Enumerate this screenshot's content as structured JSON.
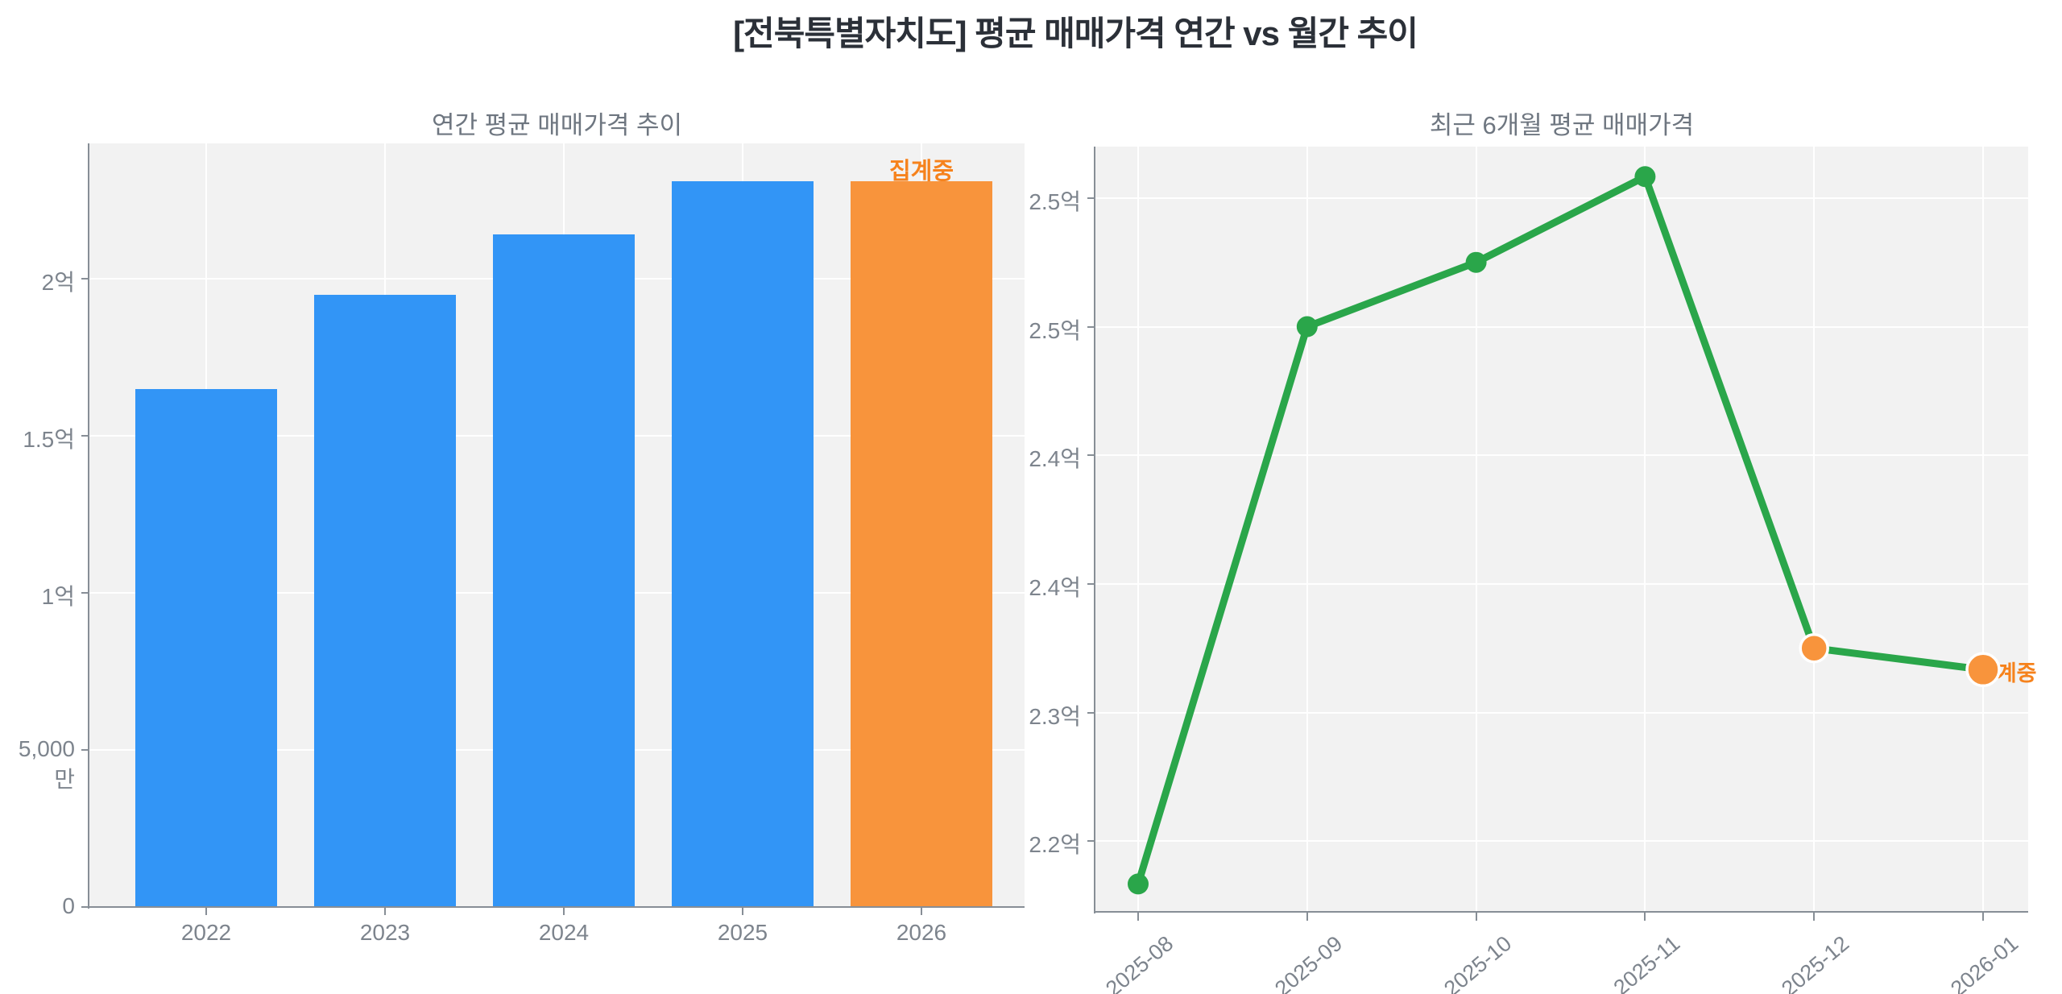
{
  "main_title": "[전북특별자치도] 평균 매매가격 연간 vs 월간 추이",
  "colors": {
    "bar_blue": "#3295f6",
    "accent_orange": "#f8943c",
    "line_green": "#2aa64a",
    "annotation_orange": "#f6821c",
    "plot_background": "#f2f2f2",
    "axis_gray": "#878e96",
    "tick_text_gray": "#7d848d"
  },
  "chart_data": [
    {
      "type": "bar",
      "title": "연간 평균 매매가격 추이",
      "unit": "억",
      "categories": [
        "2022",
        "2023",
        "2024",
        "2025",
        "2026"
      ],
      "values": [
        1.65,
        1.95,
        2.14,
        2.31,
        2.31
      ],
      "bar_colors": [
        "#3295f6",
        "#3295f6",
        "#3295f6",
        "#3295f6",
        "#f8943c"
      ],
      "ylim": [
        0,
        2.431
      ],
      "yticks": [
        {
          "value": 0,
          "label": "0"
        },
        {
          "value": 0.5,
          "label": "5,000만"
        },
        {
          "value": 1,
          "label": "1억"
        },
        {
          "value": 1.5,
          "label": "1.5억"
        },
        {
          "value": 2,
          "label": "2억"
        }
      ],
      "grid": true,
      "legend": false,
      "annotation": {
        "text": "집계중",
        "target": "2026",
        "color": "#f6821c"
      }
    },
    {
      "type": "line",
      "title": "최근 6개월 평균 매매가격",
      "unit": "억",
      "x": [
        "2025-08",
        "2025-09",
        "2025-10",
        "2025-11",
        "2025-12",
        "2026-01"
      ],
      "values": [
        2.22,
        2.48,
        2.51,
        2.55,
        2.33,
        2.32
      ],
      "line_color": "#2aa64a",
      "point_colors": [
        "#2aa64a",
        "#2aa64a",
        "#2aa64a",
        "#2aa64a",
        "#f8943c",
        "#f8943c"
      ],
      "ylim": [
        2.207,
        2.564
      ],
      "yticks": [
        {
          "value": 2.54,
          "label": "2.5억"
        },
        {
          "value": 2.48,
          "label": "2.5억"
        },
        {
          "value": 2.42,
          "label": "2.4억"
        },
        {
          "value": 2.36,
          "label": "2.4억"
        },
        {
          "value": 2.3,
          "label": "2.3억"
        },
        {
          "value": 2.24,
          "label": "2.2억"
        }
      ],
      "grid": true,
      "legend": false,
      "annotation": {
        "text": "집계중",
        "target": "2026-01",
        "color": "#f6821c"
      }
    }
  ]
}
